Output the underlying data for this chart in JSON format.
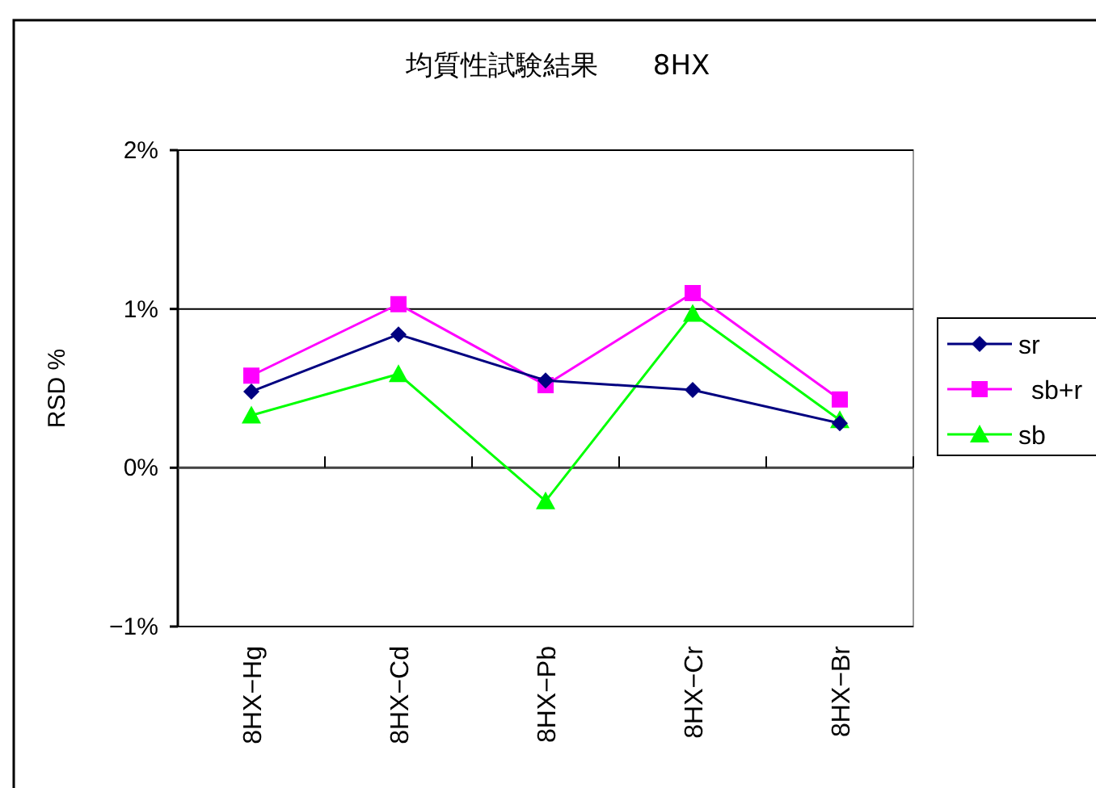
{
  "chart_data": {
    "type": "line",
    "title": "均質性試験結果　　8HX",
    "ylabel": "RSD %",
    "categories": [
      "8HX−Hg",
      "8HX−Cd",
      "8HX−Pb",
      "8HX−Cr",
      "8HX−Br"
    ],
    "series": [
      {
        "name": "sr",
        "color": "#000080",
        "marker": "diamond",
        "values": [
          0.48,
          0.84,
          0.55,
          0.49,
          0.28
        ]
      },
      {
        "name": "sb+r",
        "color": "#ff00ff",
        "marker": "square",
        "values": [
          0.58,
          1.03,
          0.52,
          1.1,
          0.43
        ]
      },
      {
        "name": "sb",
        "color": "#00ff00",
        "marker": "triangle",
        "values": [
          0.33,
          0.59,
          -0.21,
          0.97,
          0.3
        ]
      }
    ],
    "ylim": [
      -1,
      2
    ],
    "yticks": [
      {
        "value": -1,
        "label": "−1%"
      },
      {
        "value": 0,
        "label": "0%"
      },
      {
        "value": 1,
        "label": "1%"
      },
      {
        "value": 2,
        "label": "2%"
      }
    ],
    "grid": "y",
    "legend": "right",
    "line_style": "solid"
  }
}
